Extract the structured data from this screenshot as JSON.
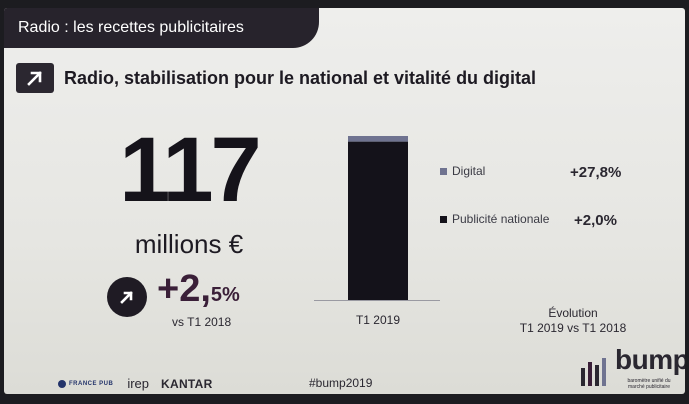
{
  "section_title": "Radio : les recettes publicitaires",
  "headline": "Radio, stabilisation pour le national et vitalité du digital",
  "kpi": {
    "value": "117",
    "unit": "millions €",
    "growth_main": "+2,",
    "growth_decimal": "5%",
    "growth_reference": "vs T1 2018"
  },
  "chart_data": {
    "type": "bar",
    "stacked": true,
    "categories": [
      "T1 2019"
    ],
    "series": [
      {
        "name": "Publicité nationale",
        "values": [
          113
        ],
        "color": "#14121a",
        "change": "+2,0%"
      },
      {
        "name": "Digital",
        "values": [
          4
        ],
        "color": "#6f7390",
        "change": "+27,8%"
      }
    ],
    "unit": "millions €",
    "ylim": [
      0,
      117
    ],
    "grid": false,
    "legend_position": "right",
    "note_line1": "Évolution",
    "note_line2": "T1 2019 vs T1 2018"
  },
  "footer": {
    "logo_francepub": "FRANCE PUB",
    "logo_irep": "irep",
    "logo_kantar": "KANTAR",
    "hashtag": "#bump2019",
    "bump_word": "bump",
    "bump_tagline": "baromètre unifié du marché publicitaire"
  },
  "colors": {
    "dark": "#27232c",
    "accent": "#3a1f38",
    "digital": "#6f7390"
  }
}
